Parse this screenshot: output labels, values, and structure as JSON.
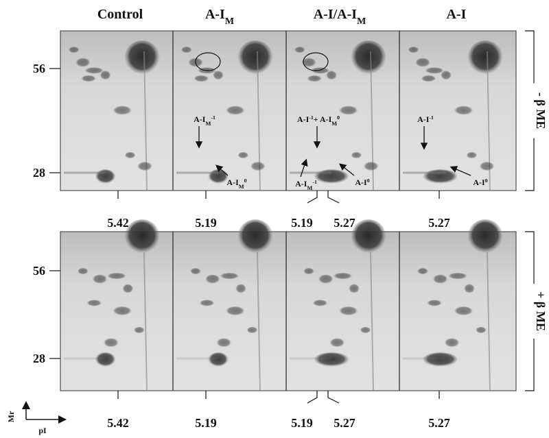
{
  "columns": [
    [
      {
        "text": "Control"
      }
    ],
    [
      {
        "text": "A-I"
      },
      {
        "text": "M",
        "style": "sub"
      }
    ],
    [
      {
        "text": "A-I/A-I"
      },
      {
        "text": "M",
        "style": "sub"
      }
    ],
    [
      {
        "text": "A-I"
      }
    ]
  ],
  "panels": [
    {
      "side_label": "- β ME",
      "mr_markers": [
        56,
        28
      ],
      "pi_labels": [
        5.42,
        5.19,
        5.19,
        5.27,
        5.27
      ],
      "annotations": [
        [
          {
            "text": "A-I"
          },
          {
            "text": "M",
            "style": "sub"
          },
          {
            "text": "-1",
            "style": "sup"
          }
        ],
        [
          {
            "text": "A-I"
          },
          {
            "text": "M",
            "style": "sub"
          },
          {
            "text": "0",
            "style": "sup"
          }
        ],
        [
          {
            "text": "A-I"
          },
          {
            "text": "-1",
            "style": "sup"
          },
          {
            "text": "+ A-I"
          },
          {
            "text": "M",
            "style": "sub"
          },
          {
            "text": "0",
            "style": "sup"
          }
        ],
        [
          {
            "text": "A-I"
          },
          {
            "text": "M",
            "style": "sub"
          },
          {
            "text": "-1",
            "style": "sup"
          }
        ],
        [
          {
            "text": "A-I"
          },
          {
            "text": "0",
            "style": "sup"
          }
        ],
        [
          {
            "text": "A-I"
          },
          {
            "text": "-1",
            "style": "sup"
          }
        ],
        [
          {
            "text": "A-I"
          },
          {
            "text": "0",
            "style": "sup"
          }
        ]
      ]
    },
    {
      "side_label": "+ β ME",
      "mr_markers": [
        56,
        28
      ],
      "pi_labels": [
        5.42,
        5.19,
        5.19,
        5.27,
        5.27
      ]
    }
  ],
  "axes": {
    "y": "Mr",
    "x": "pI"
  }
}
